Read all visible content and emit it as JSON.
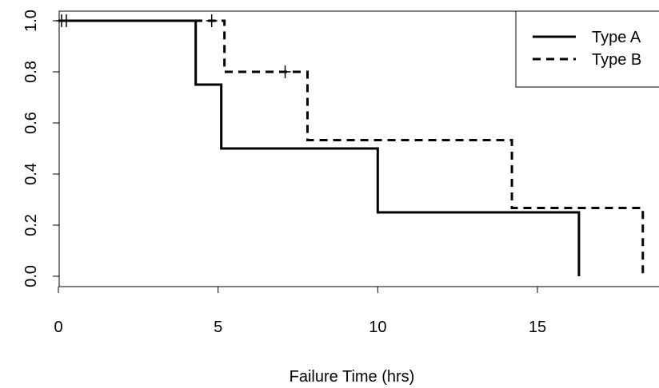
{
  "chart_data": {
    "type": "line",
    "subtype": "kaplan-meier-step",
    "title": "",
    "xlabel": "Failure Time (hrs)",
    "ylabel": "",
    "xlim": [
      0,
      18.6
    ],
    "ylim": [
      0,
      1
    ],
    "xticks": [
      0,
      5,
      10,
      15
    ],
    "xtick_labels": [
      "0",
      "5",
      "10",
      "15"
    ],
    "yticks": [
      0,
      0.2,
      0.4,
      0.6,
      0.8,
      1
    ],
    "ytick_labels": [
      "0.0",
      "0.2",
      "0.4",
      "0.6",
      "0.8",
      "1.0"
    ],
    "grid": false,
    "legend_position": "top-right",
    "series": [
      {
        "name": "Type A",
        "line_style": "solid",
        "color": "#000000",
        "steps": [
          [
            0,
            1.0
          ],
          [
            4.3,
            0.75
          ],
          [
            5.1,
            0.5
          ],
          [
            10.0,
            0.25
          ],
          [
            16.3,
            0.0
          ]
        ],
        "censored": [
          [
            0.1,
            1.0
          ],
          [
            0.25,
            1.0
          ]
        ]
      },
      {
        "name": "Type B",
        "line_style": "dashed",
        "color": "#000000",
        "steps": [
          [
            0,
            1.0
          ],
          [
            5.2,
            0.8
          ],
          [
            7.8,
            0.533
          ],
          [
            14.2,
            0.267
          ],
          [
            18.3,
            0.0
          ]
        ],
        "censored": [
          [
            4.8,
            1.0
          ],
          [
            7.1,
            0.8
          ]
        ]
      }
    ]
  }
}
